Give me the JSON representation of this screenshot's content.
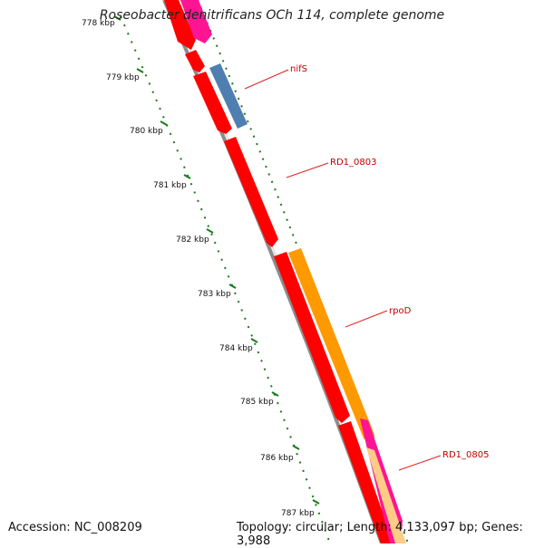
{
  "title": "Roseobacter denitrificans OCh 114, complete genome",
  "footer": {
    "accession": "Accession: NC_008209",
    "summary": "Topology: circular; Length: 4,133,097 bp; Genes: 3,988"
  },
  "ticks": [
    {
      "label": "778 kbp"
    },
    {
      "label": "779 kbp"
    },
    {
      "label": "780 kbp"
    },
    {
      "label": "781 kbp"
    },
    {
      "label": "782 kbp"
    },
    {
      "label": "783 kbp"
    },
    {
      "label": "784 kbp"
    },
    {
      "label": "785 kbp"
    },
    {
      "label": "786 kbp"
    },
    {
      "label": "787 kbp"
    }
  ],
  "gene_labels": [
    {
      "name": "nifS"
    },
    {
      "name": "RD1_0803"
    },
    {
      "name": "rpoD"
    },
    {
      "name": "RD1_0805"
    }
  ],
  "colors": {
    "cds": "#ff0000",
    "nifS": "#4f7fb0",
    "rpoD": "#ff9900",
    "magenta": "#ff1493",
    "backbone": "#808080",
    "ticks": "#1a7a1a",
    "label": "#c00000"
  }
}
